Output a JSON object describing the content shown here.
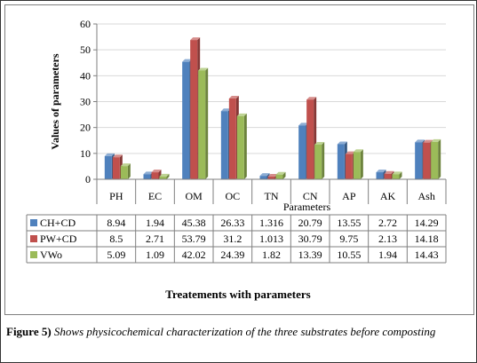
{
  "chart_data": {
    "type": "bar",
    "title": "",
    "xlabel_top": "Parameters",
    "xlabel": "Treatements with parameters",
    "ylabel": "Values of parameters",
    "ylim": [
      0,
      60
    ],
    "yticks": [
      "0",
      "10",
      "20",
      "30",
      "40",
      "50",
      "60"
    ],
    "grid": true,
    "legend": "in data table",
    "categories": [
      "PH",
      "EC",
      "OM",
      "OC",
      "TN",
      "CN",
      "AP",
      "AK",
      "Ash"
    ],
    "series": [
      {
        "name": "CH+CD",
        "color": "#4f81bd",
        "values": [
          8.94,
          1.94,
          45.38,
          26.33,
          1.316,
          20.79,
          13.55,
          2.72,
          14.29
        ],
        "labels": [
          "8.94",
          "1.94",
          "45.38",
          "26.33",
          "1.316",
          "20.79",
          "13.55",
          "2.72",
          "14.29"
        ]
      },
      {
        "name": "PW+CD",
        "color": "#c0504d",
        "values": [
          8.5,
          2.71,
          53.79,
          31.2,
          1.013,
          30.79,
          9.75,
          2.13,
          14.18
        ],
        "labels": [
          "8.5",
          "2.71",
          "53.79",
          "31.2",
          "1.013",
          "30.79",
          "9.75",
          "2.13",
          "14.18"
        ]
      },
      {
        "name": "VWo",
        "color": "#9bbb59",
        "values": [
          5.09,
          1.09,
          42.02,
          24.39,
          1.82,
          13.39,
          10.55,
          1.94,
          14.43
        ],
        "labels": [
          "5.09",
          "1.09",
          "42.02",
          "24.39",
          "1.82",
          "13.39",
          "10.55",
          "1.94",
          "14.43"
        ]
      }
    ]
  },
  "caption": {
    "label": "Figure 5)",
    "text": "Shows physicochemical characterization of the three substrates before composting"
  }
}
